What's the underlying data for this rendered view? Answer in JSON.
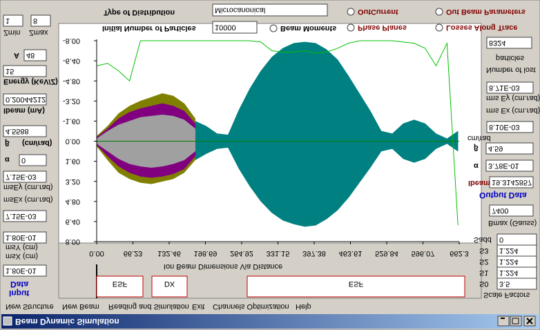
{
  "window": {
    "title": "Beam Dynamic Simulation"
  },
  "menu": [
    "New Structure",
    "New Beam",
    "Reading and Simulation",
    "Exit",
    "Channels Optimization",
    "Help"
  ],
  "settings": {
    "distribution_label": "Type of Distribution",
    "distribution": "Microcanonical",
    "particles_label": "Initial Number of Particles",
    "particles": "10000",
    "options": [
      "Beam Moments",
      "Phase Planes",
      "OutCurrent",
      "Out Beam Parameters",
      "Losses Along Trace"
    ]
  },
  "input": {
    "zmin": "1",
    "zmax": "8",
    "zmin_label": "Zmin",
    "zmax_label": "Zmax",
    "a_label": "A",
    "a": "48",
    "energy": "15",
    "energy_label": "Energy (KeV/Z)",
    "ibeam": "0.20044212",
    "ibeam_label": "Ibeam (mA)",
    "beta": "4.5588",
    "beta_label": "β",
    "beta_unit": "(cm/rad)",
    "alpha_label": "α",
    "alpha": "0",
    "emit_y": "7.15E-03",
    "emit_y_label": "msEy (cm.rad)",
    "emit_x_label": "msEx (cm.rad)",
    "emit_x": "7.15E-03",
    "size_y": "1.80E-01",
    "size_y_label": "msY (cm)",
    "size_x_label": "msX (cm)",
    "size_x": "1.80E-01",
    "title_top": "Data",
    "title_bottom": "Input"
  },
  "output": {
    "lost": "8324",
    "lost_label_1": "particles",
    "lost_label_2": "Number of lost",
    "emit_y": "8.71E-03",
    "emit_y_label": "rms Ey (cm.rad)",
    "emit_x_label": "rms Ex (cm.rad)",
    "emit_x": "8.10E-03",
    "beta_unit": "cm/rad",
    "beta_label": "β",
    "beta": "4.59",
    "alpha_label": "α",
    "alpha": "3.78E-01",
    "ibeam_label": "Ibeam",
    "ibeam": "19.3142857",
    "title": "Output Data",
    "bmax": "7400",
    "bmax_label": "Bmax (Gauss)",
    "sadd_label": "Sadd",
    "sadd": "0",
    "s3_label": "S3",
    "s3": "1.224",
    "s2_label": "S2",
    "s2": "1.224",
    "s1_label": "S1",
    "s1": "1.224",
    "s0_label": "S0",
    "s0": "3.5",
    "scale_title": "Scale Factors"
  },
  "chart_data": {
    "type": "band",
    "x_title": "Ion Beam Dimensions Via Distance",
    "elements": [
      "ESF",
      "DX",
      "ESF"
    ],
    "xlim": [
      0,
      662.3
    ],
    "xticks": [
      {
        "value": 0,
        "label": "0.00"
      },
      66.23,
      132.46,
      198.69,
      264.92,
      331.15,
      397.38,
      463.61,
      529.84,
      596.07,
      662.3
    ],
    "ylim": [
      -8,
      8
    ],
    "yticks": [
      {
        "value": -8,
        "label": "-8.00"
      },
      {
        "value": -6.4,
        "label": "-6.40"
      },
      {
        "value": -4.8,
        "label": "-4.80"
      },
      {
        "value": -3.2,
        "label": "-3.20"
      },
      {
        "value": -1.6,
        "label": "-1.60"
      },
      {
        "value": 0,
        "label": "0.00"
      },
      {
        "value": 1.6,
        "label": "1.60"
      },
      {
        "value": 3.2,
        "label": "3.20"
      },
      {
        "value": 4.8,
        "label": "4.80"
      },
      {
        "value": 6.4,
        "label": "6.40"
      },
      {
        "value": 8,
        "label": "8.00"
      }
    ],
    "x": [
      0,
      20,
      40,
      60,
      80,
      100,
      120,
      140,
      160,
      180,
      200,
      220,
      240,
      260,
      280,
      300,
      320,
      340,
      360,
      380,
      400,
      420,
      440,
      460,
      480,
      500,
      520,
      540,
      560,
      580,
      600,
      620,
      640,
      660
    ],
    "series": [
      {
        "color": "#008080",
        "values": [
          0.3,
          0.8,
          1.2,
          1.5,
          1.7,
          1.9,
          2.2,
          2.0,
          1.8,
          1.5,
          1.0,
          0.6,
          0.5,
          2.2,
          3.6,
          4.8,
          5.7,
          6.3,
          6.6,
          6.8,
          6.7,
          6.2,
          5.5,
          4.5,
          3.3,
          2.1,
          0.8,
          0.6,
          1.4,
          1.7,
          1.4,
          0.6,
          0.2,
          0.8
        ],
        "lower": [
          -0.3,
          -0.8,
          -1.2,
          -1.5,
          -1.7,
          -1.9,
          -2.2,
          -2.0,
          -1.8,
          -1.6,
          -1.2,
          -0.6,
          -0.5,
          -2.5,
          -4.2,
          -5.6,
          -6.7,
          -7.4,
          -7.8,
          -7.9,
          -7.8,
          -7.3,
          -6.5,
          -5.2,
          -3.8,
          -2.4,
          -0.8,
          -0.6,
          -1.4,
          -1.7,
          -1.4,
          -0.6,
          -0.2,
          -0.8
        ]
      },
      {
        "color": "#808000",
        "values": [
          0.4,
          1.5,
          2.5,
          3.0,
          3.3,
          3.4,
          3.2,
          3.0,
          2.5,
          1.5,
          null,
          null,
          null,
          null,
          null,
          null,
          null,
          null,
          null,
          null,
          null,
          null,
          null,
          null,
          null,
          null,
          null,
          null,
          null,
          null,
          null,
          null,
          null,
          null
        ],
        "lower": [
          -0.4,
          -1.2,
          -2.2,
          -2.8,
          -3.2,
          -3.5,
          -3.8,
          -3.6,
          -3.0,
          -1.8,
          null,
          null,
          null,
          null,
          null,
          null,
          null,
          null,
          null,
          null,
          null,
          null,
          null,
          null,
          null,
          null,
          null,
          null,
          null,
          null,
          null,
          null,
          null,
          null
        ]
      },
      {
        "color": "#800080",
        "values": [
          0.3,
          1.2,
          2.0,
          2.5,
          2.8,
          2.9,
          2.8,
          2.6,
          2.2,
          1.2,
          null,
          null,
          null,
          null,
          null,
          null,
          null,
          null,
          null,
          null,
          null,
          null,
          null,
          null,
          null,
          null,
          null,
          null,
          null,
          null,
          null,
          null,
          null,
          null
        ],
        "lower": [
          -0.3,
          -1.0,
          -1.8,
          -2.3,
          -2.6,
          -2.8,
          -3.0,
          -2.8,
          -2.4,
          -1.4,
          null,
          null,
          null,
          null,
          null,
          null,
          null,
          null,
          null,
          null,
          null,
          null,
          null,
          null,
          null,
          null,
          null,
          null,
          null,
          null,
          null,
          null,
          null,
          null
        ]
      },
      {
        "color": "#a0a0a0",
        "values": [
          0.2,
          0.8,
          1.4,
          1.8,
          2.0,
          2.1,
          2.0,
          1.8,
          1.5,
          0.8,
          null,
          null,
          null,
          null,
          null,
          null,
          null,
          null,
          null,
          null,
          null,
          null,
          null,
          null,
          null,
          null,
          null,
          null,
          null,
          null,
          null,
          null,
          null,
          null
        ],
        "lower": [
          -0.2,
          -0.8,
          -1.3,
          -1.6,
          -1.9,
          -2.0,
          -2.1,
          -2.0,
          -1.7,
          -1.0,
          null,
          null,
          null,
          null,
          null,
          null,
          null,
          null,
          null,
          null,
          null,
          null,
          null,
          null,
          null,
          null,
          null,
          null,
          null,
          null,
          null,
          null,
          null,
          null
        ]
      },
      {
        "color": "#00c000",
        "values": [
          -6.0,
          -6.2,
          -5.6,
          -4.8,
          -8,
          -8,
          -8,
          -8,
          -8,
          -8,
          -8,
          -8,
          -8,
          -8,
          -8,
          -7.9,
          -7.2,
          -7.1,
          -7.1,
          -7.2,
          -7.0,
          -7.1,
          -7.4,
          -7.8,
          -8,
          -8,
          -8,
          -8,
          -7.9,
          -7.8,
          -7.4,
          -6.0,
          -7.8,
          6.7
        ]
      }
    ]
  }
}
